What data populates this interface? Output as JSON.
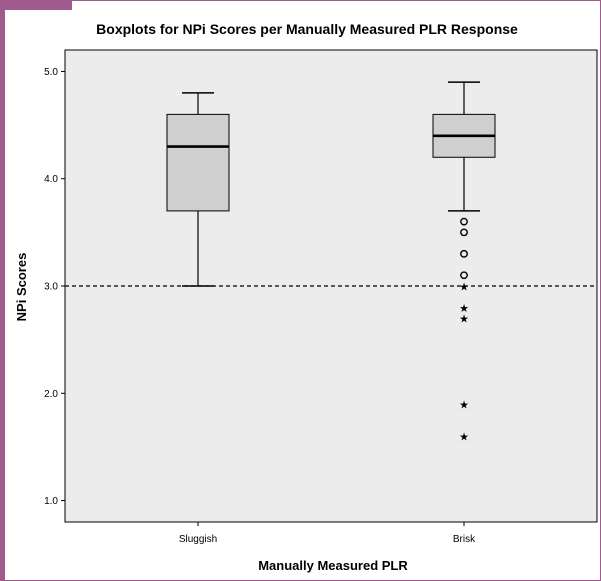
{
  "colors": {
    "frame_accent": "#a05a8c",
    "plot_background": "#ececec",
    "box_fill": "#cfcfcf",
    "stroke": "#000000"
  },
  "chart_data": {
    "type": "boxplot",
    "title": "Boxplots for NPi Scores per Manually Measured PLR Response",
    "xlabel": "Manually Measured PLR",
    "ylabel": "NPi Scores",
    "ylim": [
      0.8,
      5.2
    ],
    "yticks": [
      "1.0",
      "2.0",
      "3.0",
      "4.0",
      "5.0"
    ],
    "yticks_values": [
      1.0,
      2.0,
      3.0,
      4.0,
      5.0
    ],
    "reference_line": {
      "y": 3.0,
      "style": "dashed"
    },
    "grid": false,
    "categories": [
      "Sluggish",
      "Brisk"
    ],
    "boxes": [
      {
        "category": "Sluggish",
        "whisker_low": 3.0,
        "q1": 3.7,
        "median": 4.3,
        "q3": 4.6,
        "whisker_high": 4.8,
        "outliers": [],
        "extremes": []
      },
      {
        "category": "Brisk",
        "whisker_low": 3.7,
        "q1": 4.2,
        "median": 4.4,
        "q3": 4.6,
        "whisker_high": 4.9,
        "outliers": [
          3.6,
          3.5,
          3.3,
          3.1
        ],
        "extremes": [
          3.0,
          2.8,
          2.7,
          1.9,
          1.6
        ]
      }
    ]
  }
}
